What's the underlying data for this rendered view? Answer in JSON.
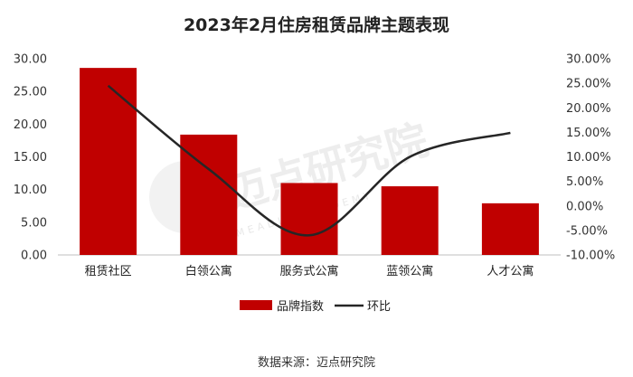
{
  "title": "2023年2月住房租赁品牌主题表现",
  "source": "数据来源：迈点研究院",
  "watermark": {
    "name": "迈点研究院",
    "sub": "MEADIN ACADEMY"
  },
  "colors": {
    "bar": "#c00000",
    "line": "#262626",
    "axis": "#bfbfbf"
  },
  "chart_data": {
    "type": "bar",
    "title": "2023年2月住房租赁品牌主题表现",
    "categories": [
      "租赁社区",
      "白领公寓",
      "服务式公寓",
      "蓝领公寓",
      "人才公寓"
    ],
    "series": [
      {
        "name": "品牌指数",
        "type": "bar",
        "axis": "left",
        "values": [
          28.6,
          18.4,
          11.0,
          10.5,
          7.9
        ]
      },
      {
        "name": "环比",
        "type": "line",
        "axis": "right",
        "unit": "%",
        "values": [
          24.5,
          7.5,
          -6.0,
          10.0,
          14.9
        ]
      }
    ],
    "y_left": {
      "ylim": [
        0,
        30
      ],
      "ticks": [
        "0.00",
        "5.00",
        "10.00",
        "15.00",
        "20.00",
        "25.00",
        "30.00"
      ]
    },
    "y_right": {
      "ylim": [
        -10,
        30
      ],
      "ticks": [
        "-10.00%",
        "-5.00%",
        "0.00%",
        "5.00%",
        "10.00%",
        "15.00%",
        "20.00%",
        "25.00%",
        "30.00%"
      ]
    },
    "legend": [
      "品牌指数",
      "环比"
    ],
    "legend_position": "bottom",
    "grid": false
  }
}
